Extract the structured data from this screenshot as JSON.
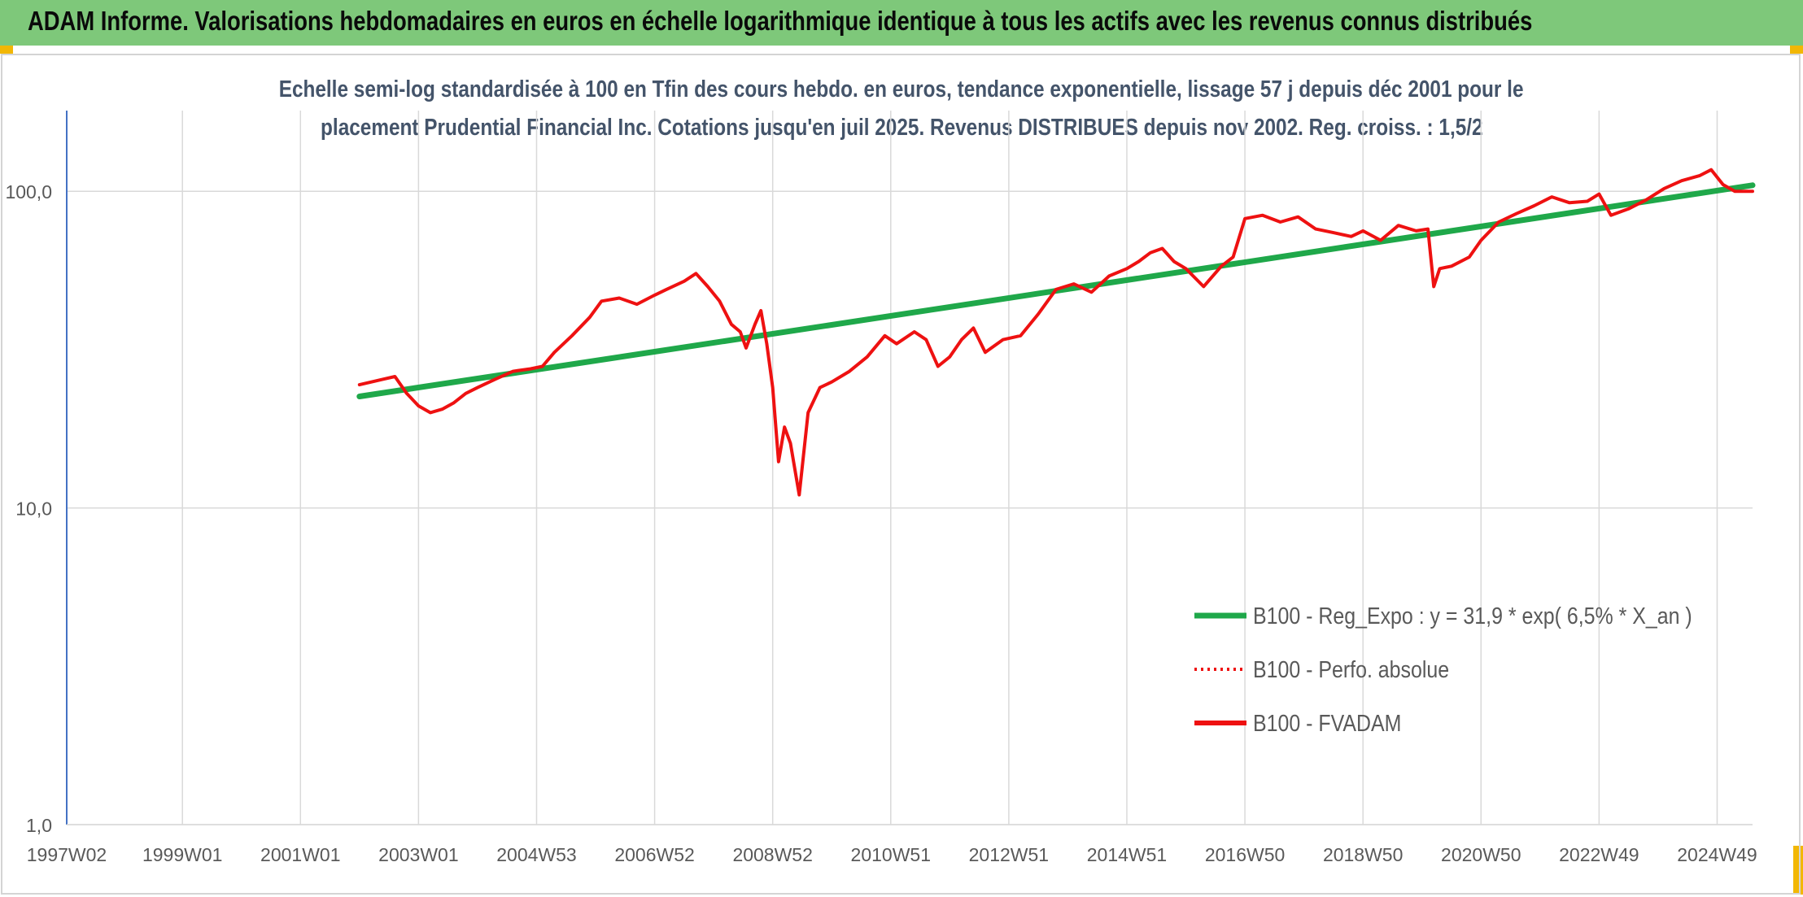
{
  "banner": {
    "title": "ADAM Informe. Valorisations hebdomadaires en euros en échelle logarithmique identique à tous les actifs avec les revenus connus distribués"
  },
  "colors": {
    "banner": "#7ec87a",
    "corner_marks": "#f2b705",
    "trend_line": "#1fa84a",
    "price_line": "#ee1111",
    "grid": "#d9d9d9",
    "axis": "#4472c4",
    "subtitle": "#44546a"
  },
  "chart_data": {
    "type": "line",
    "title_lines": [
      "Echelle semi-log standardisée à 100 en Tfin des cours hebdo. en euros, tendance exponentielle, lissage 57 j depuis déc 2001 pour le",
      "placement Prudential Financial Inc. Cotations jusqu'en juil 2025. Revenus DISTRIBUES depuis nov 2002. Reg. croiss. : 1,5/2"
    ],
    "y_scale": "log",
    "ylim": [
      1,
      200
    ],
    "y_ticks": [
      {
        "value": 1,
        "label": "1,0"
      },
      {
        "value": 10,
        "label": "10,0"
      },
      {
        "value": 100,
        "label": "100,0"
      }
    ],
    "xlim": [
      1997.04,
      2025.6
    ],
    "x_ticks": [
      {
        "value": 1997.04,
        "label": "1997W02"
      },
      {
        "value": 1999.0,
        "label": "1999W01"
      },
      {
        "value": 2001.0,
        "label": "2001W01"
      },
      {
        "value": 2003.0,
        "label": "2003W01"
      },
      {
        "value": 2005.0,
        "label": "2004W53"
      },
      {
        "value": 2007.0,
        "label": "2006W52"
      },
      {
        "value": 2009.0,
        "label": "2008W52"
      },
      {
        "value": 2011.0,
        "label": "2010W51"
      },
      {
        "value": 2013.0,
        "label": "2012W51"
      },
      {
        "value": 2015.0,
        "label": "2014W51"
      },
      {
        "value": 2017.0,
        "label": "2016W50"
      },
      {
        "value": 2019.0,
        "label": "2018W50"
      },
      {
        "value": 2021.0,
        "label": "2020W50"
      },
      {
        "value": 2023.0,
        "label": "2022W49"
      },
      {
        "value": 2025.0,
        "label": "2024W49"
      }
    ],
    "grid": true,
    "legend_position": "bottom-right",
    "series": [
      {
        "name": "B100 - Reg_Expo : y = 31,9 * exp( 6,5% *  X_an )",
        "style": "solid-thick",
        "color": "#1fa84a",
        "x": [
          2002.0,
          2025.6
        ],
        "y": [
          22.5,
          104.5
        ]
      },
      {
        "name": "B100 - Perfo. absolue",
        "style": "dotted",
        "color": "#ee1111",
        "x": [],
        "y": []
      },
      {
        "name": "B100 - FVADAM",
        "style": "solid",
        "color": "#ee1111",
        "x": [
          2002.0,
          2002.2,
          2002.4,
          2002.6,
          2002.8,
          2003.0,
          2003.2,
          2003.4,
          2003.6,
          2003.8,
          2004.0,
          2004.3,
          2004.6,
          2004.9,
          2005.1,
          2005.3,
          2005.6,
          2005.9,
          2006.1,
          2006.4,
          2006.7,
          2007.0,
          2007.2,
          2007.5,
          2007.7,
          2007.9,
          2008.1,
          2008.3,
          2008.45,
          2008.55,
          2008.7,
          2008.8,
          2008.9,
          2009.0,
          2009.1,
          2009.2,
          2009.3,
          2009.45,
          2009.6,
          2009.8,
          2010.0,
          2010.3,
          2010.6,
          2010.9,
          2011.1,
          2011.4,
          2011.6,
          2011.8,
          2012.0,
          2012.2,
          2012.4,
          2012.6,
          2012.9,
          2013.2,
          2013.5,
          2013.8,
          2014.1,
          2014.4,
          2014.7,
          2015.0,
          2015.2,
          2015.4,
          2015.6,
          2015.8,
          2016.0,
          2016.3,
          2016.6,
          2016.8,
          2017.0,
          2017.3,
          2017.6,
          2017.9,
          2018.2,
          2018.5,
          2018.8,
          2019.0,
          2019.3,
          2019.6,
          2019.9,
          2020.1,
          2020.2,
          2020.3,
          2020.5,
          2020.8,
          2021.0,
          2021.3,
          2021.6,
          2021.9,
          2022.2,
          2022.5,
          2022.8,
          2023.0,
          2023.2,
          2023.5,
          2023.8,
          2024.1,
          2024.4,
          2024.7,
          2024.9,
          2025.1,
          2025.3,
          2025.6
        ],
        "y": [
          24.5,
          25.0,
          25.5,
          26.0,
          23.0,
          21.0,
          20.0,
          20.5,
          21.5,
          23.0,
          24.0,
          25.5,
          27.0,
          27.5,
          28.0,
          31.0,
          35.0,
          40.0,
          45.0,
          46.0,
          44.0,
          47.0,
          49.0,
          52.0,
          55.0,
          50.0,
          45.0,
          38.0,
          36.0,
          32.0,
          38.0,
          42.0,
          33.0,
          24.0,
          14.0,
          18.0,
          16.0,
          11.0,
          20.0,
          24.0,
          25.0,
          27.0,
          30.0,
          35.0,
          33.0,
          36.0,
          34.0,
          28.0,
          30.0,
          34.0,
          37.0,
          31.0,
          34.0,
          35.0,
          41.0,
          49.0,
          51.0,
          48.0,
          54.0,
          57.0,
          60.0,
          64.0,
          66.0,
          60.0,
          57.0,
          50.0,
          58.0,
          62.0,
          82.0,
          84.0,
          80.0,
          83.0,
          76.0,
          74.0,
          72.0,
          75.0,
          70.0,
          78.0,
          75.0,
          76.0,
          50.0,
          57.0,
          58.0,
          62.0,
          70.0,
          80.0,
          85.0,
          90.0,
          96.0,
          92.0,
          93.0,
          98.0,
          84.0,
          88.0,
          94.0,
          102.0,
          108.0,
          112.0,
          117.0,
          105.0,
          100.0,
          100.0
        ]
      }
    ]
  }
}
